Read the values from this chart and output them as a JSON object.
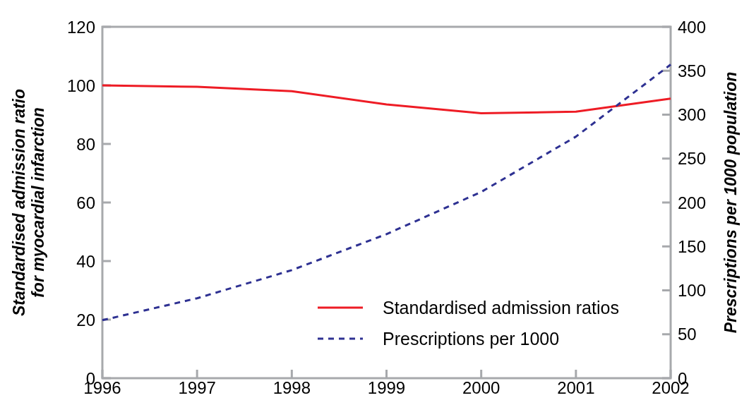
{
  "chart_data": {
    "type": "line",
    "categories": [
      "1996",
      "1997",
      "1998",
      "1999",
      "2000",
      "2001",
      "2002"
    ],
    "ylabel": "Standardised admission ratio\nfor myocardial infarction",
    "y2label": "Prescriptions per 1000 population",
    "ylim": [
      0,
      120
    ],
    "yticks": [
      0,
      20,
      40,
      60,
      80,
      100,
      120
    ],
    "y2lim": [
      0,
      400
    ],
    "y2ticks": [
      0,
      50,
      100,
      150,
      200,
      250,
      300,
      350,
      400
    ],
    "legend": "bottom right",
    "grid": false,
    "series": [
      {
        "name": "Standardised admission ratios",
        "color": "#ee1c25",
        "line_style": "solid",
        "values": [
          100,
          99.5,
          98,
          93.5,
          90.5,
          91,
          95.5
        ]
      },
      {
        "name": "Prescriptions per 1000",
        "color": "#2e3192",
        "line_style": "dashed",
        "axis": "y2",
        "values": [
          66,
          91,
          123,
          164,
          212,
          275,
          357
        ]
      }
    ]
  }
}
